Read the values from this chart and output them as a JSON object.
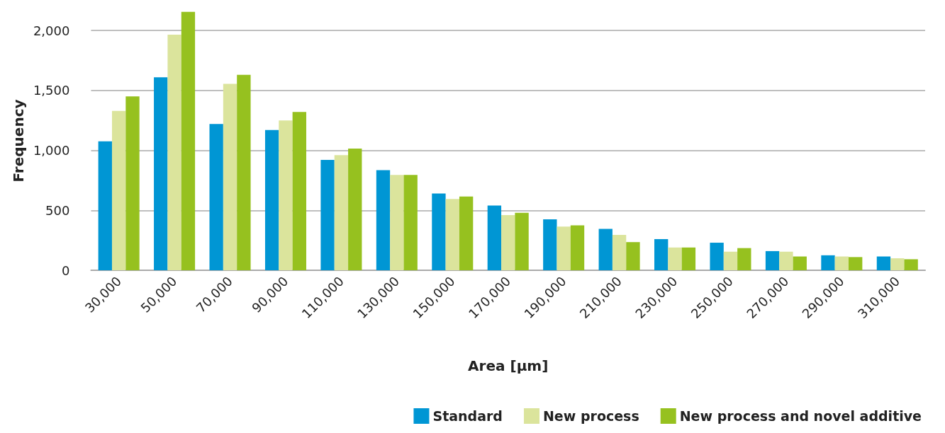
{
  "chart_data": {
    "type": "bar",
    "xlabel": "Area [µm]",
    "ylabel": "Frequency",
    "categories": [
      "30,000",
      "50,000",
      "70,000",
      "90,000",
      "110,000",
      "130,000",
      "150,000",
      "170,000",
      "190,000",
      "210,000",
      "230,000",
      "250,000",
      "270,000",
      "290,000",
      "310,000"
    ],
    "series": [
      {
        "name": "Standard",
        "color": "#0096d4",
        "values": [
          1075,
          1610,
          1220,
          1170,
          920,
          835,
          640,
          540,
          425,
          345,
          260,
          230,
          160,
          125,
          115
        ]
      },
      {
        "name": "New process",
        "color": "#dbe49c",
        "values": [
          1330,
          1965,
          1555,
          1250,
          960,
          795,
          595,
          460,
          365,
          295,
          190,
          155,
          155,
          115,
          100
        ]
      },
      {
        "name": "New process and novel additive",
        "color": "#96c11f",
        "values": [
          1450,
          2155,
          1630,
          1320,
          1015,
          795,
          615,
          480,
          375,
          235,
          190,
          185,
          115,
          110,
          92
        ]
      }
    ],
    "ylim": [
      0,
      2160
    ],
    "yticks": [
      {
        "value": 0,
        "label": "0"
      },
      {
        "value": 500,
        "label": "500"
      },
      {
        "value": 1000,
        "label": "1,000"
      },
      {
        "value": 1500,
        "label": "1,500"
      },
      {
        "value": 2000,
        "label": "2,000"
      }
    ],
    "grid": "y",
    "legend": "bottom right"
  }
}
